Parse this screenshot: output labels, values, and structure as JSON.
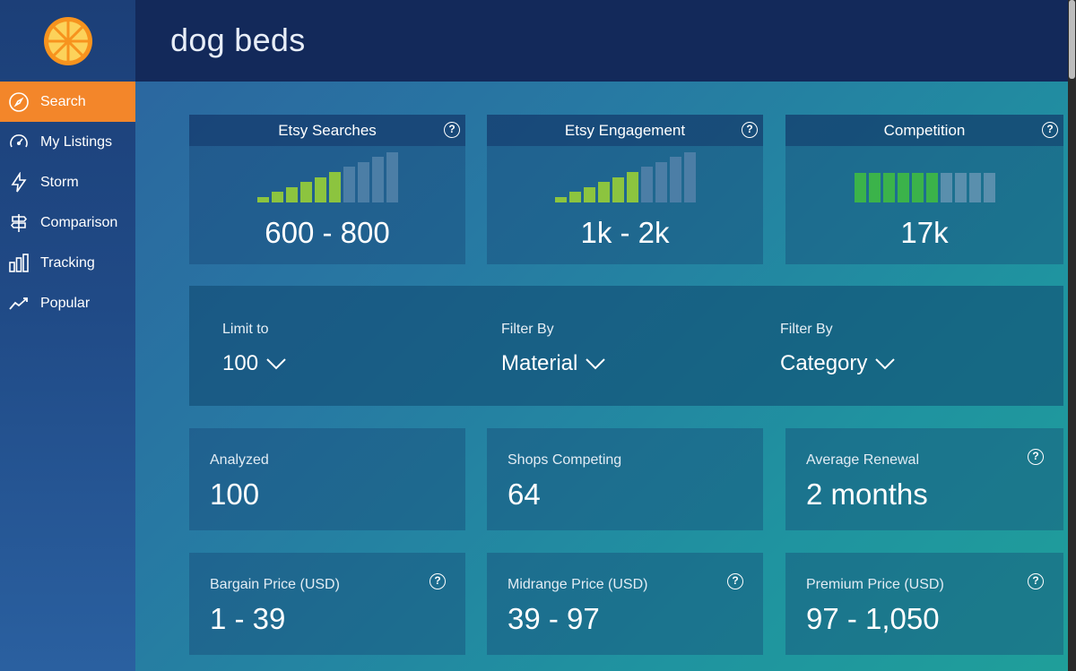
{
  "header": {
    "search_query": "dog beds"
  },
  "sidebar": {
    "items": [
      {
        "label": "Search",
        "icon": "compass-icon",
        "active": true
      },
      {
        "label": "My Listings",
        "icon": "gauge-icon"
      },
      {
        "label": "Storm",
        "icon": "lightning-icon"
      },
      {
        "label": "Comparison",
        "icon": "signpost-icon"
      },
      {
        "label": "Tracking",
        "icon": "bar-chart-icon"
      },
      {
        "label": "Popular",
        "icon": "trend-line-icon"
      }
    ]
  },
  "stats": [
    {
      "title": "Etsy Searches",
      "value": "600 - 800",
      "level": 6,
      "max": 10
    },
    {
      "title": "Etsy Engagement",
      "value": "1k - 2k",
      "level": 6,
      "max": 10
    },
    {
      "title": "Competition",
      "value": "17k",
      "level": 6,
      "max": 10
    }
  ],
  "filters": [
    {
      "label": "Limit to",
      "value": "100"
    },
    {
      "label": "Filter By",
      "value": "Material"
    },
    {
      "label": "Filter By",
      "value": "Category"
    }
  ],
  "info": [
    {
      "label": "Analyzed",
      "value": "100",
      "help": false
    },
    {
      "label": "Shops Competing",
      "value": "64",
      "help": false
    },
    {
      "label": "Average Renewal",
      "value": "2 months",
      "help": true
    },
    {
      "label": "Bargain Price (USD)",
      "value": "1 - 39",
      "help": true
    },
    {
      "label": "Midrange Price (USD)",
      "value": "39 - 97",
      "help": true
    },
    {
      "label": "Premium Price (USD)",
      "value": "97 - 1,050",
      "help": true
    }
  ],
  "colors": {
    "active_nav": "#f3862a",
    "bar_on": "#8cc43f",
    "competition_on": "#3bb34a",
    "header_bg": "#13295a"
  }
}
